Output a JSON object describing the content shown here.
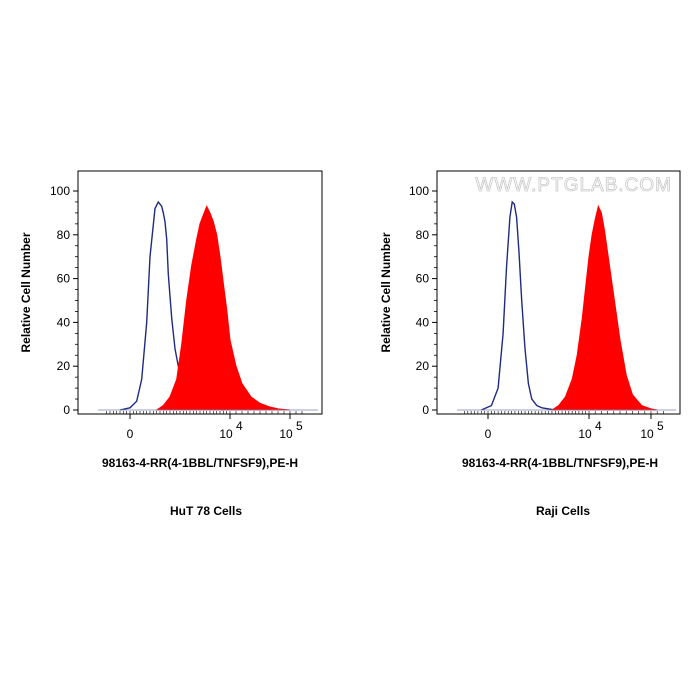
{
  "chart_data": [
    {
      "type": "area",
      "caption": "HuT 78 Cells",
      "xlabel": "98163-4-RR(4-1BBL/TNFSF9),PE-H",
      "ylabel": "Relative Cell Number",
      "ylim": [
        0,
        100
      ],
      "yticks": [
        "0",
        "20",
        "40",
        "60",
        "80",
        "100"
      ],
      "xticks": [
        {
          "base": "0",
          "exp": ""
        },
        {
          "base": "10",
          "exp": "4"
        },
        {
          "base": "10",
          "exp": "5"
        }
      ],
      "x_scale": "biexponential",
      "watermark": "",
      "series": [
        {
          "style": "outline",
          "color": "#1f2a80",
          "x": [
            -0.3,
            0.0,
            0.2,
            0.35,
            0.5,
            0.6,
            0.75,
            0.85,
            0.95,
            1.0,
            1.05,
            1.1,
            1.15,
            1.25,
            1.35,
            1.45,
            1.55,
            1.7,
            1.85,
            2.0,
            2.2,
            2.5,
            2.8
          ],
          "values": [
            0,
            1,
            4,
            14,
            40,
            70,
            92,
            95,
            93,
            90,
            86,
            78,
            62,
            42,
            28,
            20,
            14,
            9,
            5,
            3,
            1.5,
            0.5,
            0
          ]
        },
        {
          "style": "filled",
          "color": "#ff0000",
          "x": [
            0.8,
            1.0,
            1.2,
            1.4,
            1.55,
            1.7,
            1.85,
            2.0,
            2.1,
            2.2,
            2.3,
            2.4,
            2.5,
            2.6,
            2.7,
            2.8,
            2.9,
            3.0,
            3.1,
            3.2,
            3.35,
            3.5,
            3.65,
            3.8,
            4.0
          ],
          "values": [
            0,
            2,
            6,
            14,
            30,
            50,
            66,
            78,
            85,
            89,
            93,
            90,
            86,
            80,
            70,
            58,
            46,
            32,
            20,
            12,
            6,
            3,
            1.5,
            0.5,
            0
          ]
        }
      ]
    },
    {
      "type": "area",
      "caption": "Raji Cells",
      "xlabel": "98163-4-RR(4-1BBL/TNFSF9),PE-H",
      "ylabel": "Relative Cell Number",
      "ylim": [
        0,
        100
      ],
      "yticks": [
        "0",
        "20",
        "40",
        "60",
        "80",
        "100"
      ],
      "xticks": [
        {
          "base": "0",
          "exp": ""
        },
        {
          "base": "10",
          "exp": "4"
        },
        {
          "base": "10",
          "exp": "5"
        }
      ],
      "x_scale": "biexponential",
      "watermark": "WWW.PTGLAB.COM",
      "series": [
        {
          "style": "outline",
          "color": "#1f2a80",
          "x": [
            -0.2,
            0.1,
            0.3,
            0.45,
            0.55,
            0.65,
            0.72,
            0.78,
            0.85,
            0.92,
            1.0,
            1.1,
            1.2,
            1.3,
            1.45,
            1.6,
            1.8,
            2.0
          ],
          "values": [
            0,
            2,
            10,
            35,
            65,
            88,
            95,
            94,
            88,
            72,
            50,
            28,
            12,
            5,
            2,
            1,
            0.5,
            0
          ]
        },
        {
          "style": "filled",
          "color": "#ff0000",
          "x": [
            1.9,
            2.1,
            2.3,
            2.5,
            2.65,
            2.8,
            2.9,
            3.0,
            3.05,
            3.1,
            3.15,
            3.2,
            3.25,
            3.3,
            3.4,
            3.5,
            3.6,
            3.7,
            3.85,
            4.0,
            4.1
          ],
          "values": [
            0,
            2,
            6,
            14,
            25,
            42,
            56,
            70,
            80,
            87,
            93,
            90,
            82,
            72,
            52,
            32,
            16,
            7,
            2,
            0.5,
            0
          ]
        }
      ]
    }
  ]
}
